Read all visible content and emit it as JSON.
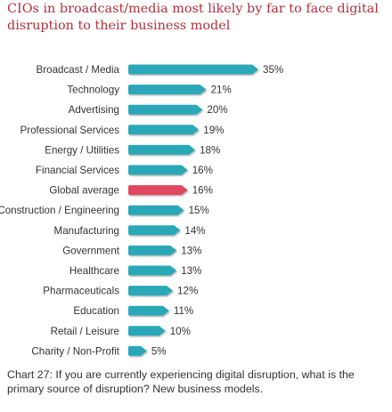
{
  "title": "CIOs in broadcast/media most likely by far to face digital disruption to their business model",
  "caption": "Chart 27: If you are currently experiencing digital disruption, what is the primary source of disruption? New business models.",
  "chart_data": {
    "type": "bar",
    "orientation": "horizontal",
    "categories": [
      "Broadcast / Media",
      "Technology",
      "Advertising",
      "Professional Services",
      "Energy / Utilities",
      "Financial Services",
      "Global average",
      "Construction / Engineering",
      "Manufacturing",
      "Government",
      "Healthcare",
      "Pharmaceuticals",
      "Education",
      "Retail / Leisure",
      "Charity / Non-Profit"
    ],
    "values": [
      35,
      21,
      20,
      19,
      18,
      16,
      16,
      15,
      14,
      13,
      13,
      12,
      11,
      10,
      5
    ],
    "value_labels": [
      "35%",
      "21%",
      "20%",
      "19%",
      "18%",
      "16%",
      "16%",
      "15%",
      "14%",
      "13%",
      "13%",
      "12%",
      "11%",
      "10%",
      "5%"
    ],
    "highlight_index": 6,
    "bar_color": "#2aa8b8",
    "highlight_color": "#e1475f",
    "grid": false,
    "legend": "none",
    "xlim": [
      0,
      35
    ]
  }
}
